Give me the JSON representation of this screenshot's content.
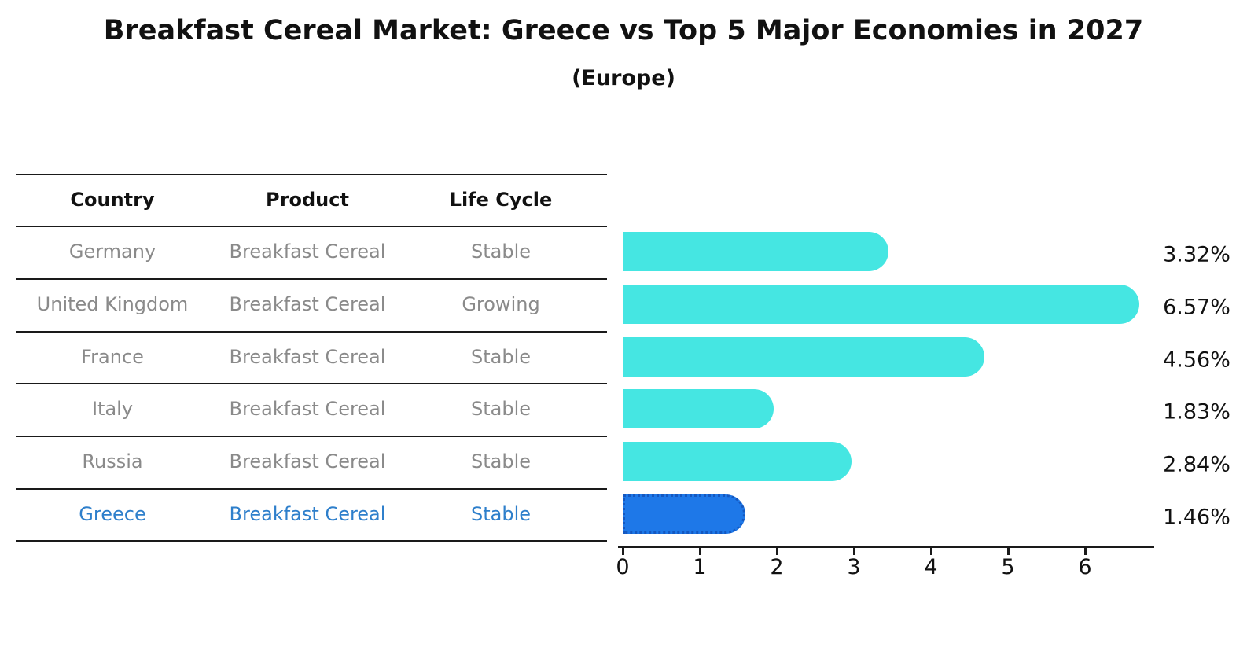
{
  "title": "Breakfast Cereal Market: Greece vs Top 5 Major Economies in 2027",
  "subtitle": "(Europe)",
  "table": {
    "headers": [
      "Country",
      "Product",
      "Life Cycle"
    ],
    "rows": [
      {
        "country": "Germany",
        "product": "Breakfast Cereal",
        "life_cycle": "Stable",
        "highlighted": false
      },
      {
        "country": "United Kingdom",
        "product": "Breakfast Cereal",
        "life_cycle": "Growing",
        "highlighted": false
      },
      {
        "country": "France",
        "product": "Breakfast Cereal",
        "life_cycle": "Stable",
        "highlighted": false
      },
      {
        "country": "Italy",
        "product": "Breakfast Cereal",
        "life_cycle": "Stable",
        "highlighted": false
      },
      {
        "country": "Russia",
        "product": "Breakfast Cereal",
        "life_cycle": "Stable",
        "highlighted": false
      },
      {
        "country": "Greece",
        "product": "Breakfast Cereal",
        "life_cycle": "Stable",
        "highlighted": true
      }
    ]
  },
  "chart_data": {
    "type": "bar",
    "orientation": "horizontal",
    "title": "Breakfast Cereal Market: Greece vs Top 5 Major Economies in 2027",
    "subtitle": "(Europe)",
    "categories": [
      "Germany",
      "United Kingdom",
      "France",
      "Italy",
      "Russia",
      "Greece"
    ],
    "values": [
      3.32,
      6.57,
      4.56,
      1.83,
      2.84,
      1.46
    ],
    "value_labels": [
      "3.32%",
      "6.57%",
      "4.56%",
      "1.83%",
      "2.84%",
      "1.46%"
    ],
    "xlabel": "",
    "ylabel": "",
    "xlim": [
      0,
      6.9
    ],
    "x_ticks": [
      0,
      1,
      2,
      3,
      4,
      5,
      6
    ],
    "grid": false,
    "legend": false,
    "highlight_category": "Greece",
    "colors": {
      "bar": "#45e6e2",
      "highlight_bar": "#1e78e8",
      "highlight_bar_border": "#1558c0",
      "highlight_text": "#2e7fcb",
      "muted_text": "#8a8a8a",
      "text": "#111111",
      "line": "#1a1a1a"
    }
  }
}
